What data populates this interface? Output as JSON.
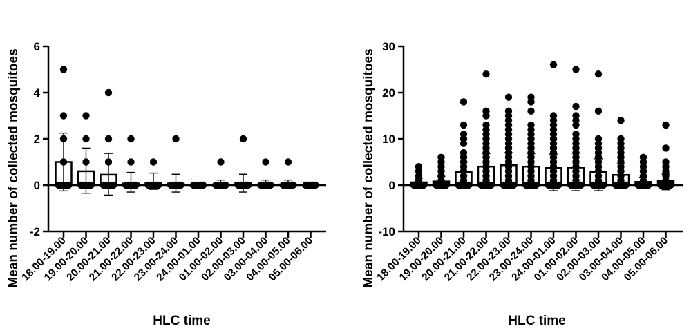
{
  "chart_data": [
    {
      "type": "bar",
      "subtype": "bar-with-scatter-and-error-bars",
      "panel": "left",
      "title": "",
      "xlabel": "HLC time",
      "ylabel": "Mean number of collected mosquitoes",
      "ylim": [
        -2,
        6
      ],
      "yticks": [
        -2,
        0,
        2,
        4,
        6
      ],
      "ytick_labels": [
        "-2",
        "0",
        "2",
        "4",
        "6"
      ],
      "grid": false,
      "categories": [
        "18.00-19.00",
        "19.00-20.00",
        "20.00-21.00",
        "21.00-22.00",
        "22.00-23.00",
        "23.00-24.00",
        "24.00-01.00",
        "01.00-02.00",
        "02.00-03.00",
        "03.00-04.00",
        "04.00-05.00",
        "05.00-06.00"
      ],
      "means": [
        1.0,
        0.6,
        0.45,
        0.07,
        0.08,
        0.07,
        0.0,
        0.03,
        0.08,
        0.03,
        0.03,
        0.0
      ],
      "sd_upper": [
        2.25,
        1.6,
        1.37,
        0.55,
        0.52,
        0.47,
        0.0,
        0.22,
        0.47,
        0.22,
        0.22,
        0.0
      ],
      "sd_lower": [
        -0.25,
        -0.35,
        -0.43,
        -0.3,
        -0.18,
        -0.3,
        0.0,
        -0.08,
        -0.3,
        -0.08,
        -0.08,
        0.0
      ],
      "points": [
        [
          0,
          1,
          2,
          3,
          5
        ],
        [
          0,
          1,
          2,
          3
        ],
        [
          0,
          1,
          2,
          4
        ],
        [
          0,
          1,
          2
        ],
        [
          0,
          1
        ],
        [
          0,
          2
        ],
        [
          0
        ],
        [
          0,
          1
        ],
        [
          0,
          2
        ],
        [
          0,
          1
        ],
        [
          0,
          1
        ],
        [
          0
        ]
      ]
    },
    {
      "type": "bar",
      "subtype": "bar-with-scatter-and-error-bars",
      "panel": "right",
      "title": "",
      "xlabel": "HLC time",
      "ylabel": "Mean number of collected mosquitoes",
      "ylim": [
        -10,
        30
      ],
      "yticks": [
        -10,
        0,
        10,
        20,
        30
      ],
      "ytick_labels": [
        "-10",
        "0",
        "10",
        "20",
        "30"
      ],
      "grid": false,
      "categories": [
        "18.00-19.00",
        "19.00-20.00",
        "20.00-21.00",
        "21.00-22.00",
        "22.00-23.00",
        "23.00-24.00",
        "24.00-01.00",
        "01.00-02.00",
        "02.00-03.00",
        "03.00-04.00",
        "04.00-05.00",
        "05.00-06.00"
      ],
      "means": [
        0.6,
        0.8,
        2.8,
        4.0,
        4.3,
        4.0,
        3.7,
        3.8,
        2.8,
        2.2,
        0.7,
        0.9
      ],
      "sd_upper": [
        1.5,
        1.9,
        5.0,
        6.8,
        7.0,
        6.8,
        6.7,
        6.9,
        5.7,
        4.6,
        1.7,
        2.4
      ],
      "sd_lower": [
        -0.3,
        -0.3,
        -0.4,
        -0.5,
        -0.5,
        -0.5,
        -1.2,
        -1.2,
        -1.2,
        -0.6,
        -0.3,
        -1.0
      ],
      "points": [
        [
          0,
          1,
          2,
          3,
          4
        ],
        [
          0,
          1,
          2,
          3,
          4,
          5,
          6
        ],
        [
          0,
          1,
          2,
          3,
          4,
          5,
          6,
          7,
          9,
          10,
          11,
          13,
          18
        ],
        [
          0,
          1,
          2,
          3,
          4,
          5,
          6,
          7,
          8,
          9,
          10,
          11,
          12,
          13,
          15,
          16,
          24
        ],
        [
          0,
          1,
          2,
          3,
          4,
          5,
          6,
          7,
          8,
          9,
          10,
          11,
          12,
          13,
          14,
          15,
          16,
          19
        ],
        [
          0,
          1,
          2,
          3,
          4,
          5,
          6,
          7,
          8,
          9,
          10,
          11,
          12,
          13,
          16,
          18,
          19
        ],
        [
          0,
          1,
          2,
          3,
          4,
          5,
          6,
          7,
          8,
          9,
          10,
          11,
          12,
          13,
          14,
          15,
          26
        ],
        [
          0,
          1,
          2,
          3,
          4,
          5,
          6,
          7,
          8,
          9,
          10,
          11,
          13,
          14,
          15,
          17,
          25
        ],
        [
          0,
          1,
          2,
          3,
          4,
          5,
          6,
          7,
          8,
          9,
          10,
          16,
          24
        ],
        [
          0,
          1,
          2,
          3,
          4,
          5,
          6,
          7,
          8,
          9,
          10,
          14
        ],
        [
          0,
          1,
          2,
          3,
          4,
          5,
          6
        ],
        [
          0,
          1,
          2,
          3,
          4,
          5,
          8,
          13
        ]
      ]
    }
  ]
}
